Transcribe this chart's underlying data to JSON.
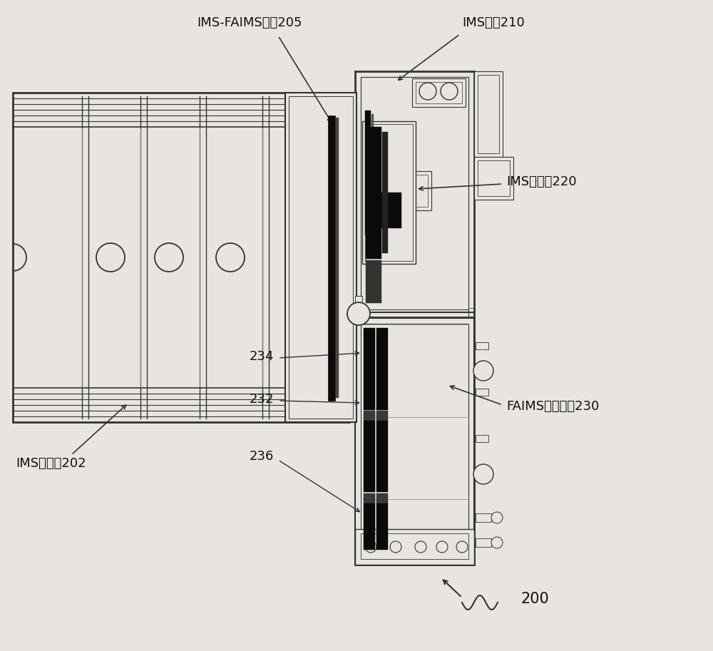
{
  "bg_color": "#e8e5e0",
  "lc": "#333333",
  "dc": "#0a0a0a",
  "mc": "#555555",
  "labels": {
    "ims_faims_gate": "IMS-FAIMS门栅205",
    "ims_aperture": "IMS孔栅210",
    "ims_collector": "IMS集电极220",
    "ims_drift": "IMS漂移管202",
    "faims_array": "FAIMS单元阵列230",
    "n234": "234",
    "n232": "232",
    "n236": "236",
    "n200": "200"
  },
  "figsize": [
    10.0,
    9.13
  ],
  "dpi": 100
}
